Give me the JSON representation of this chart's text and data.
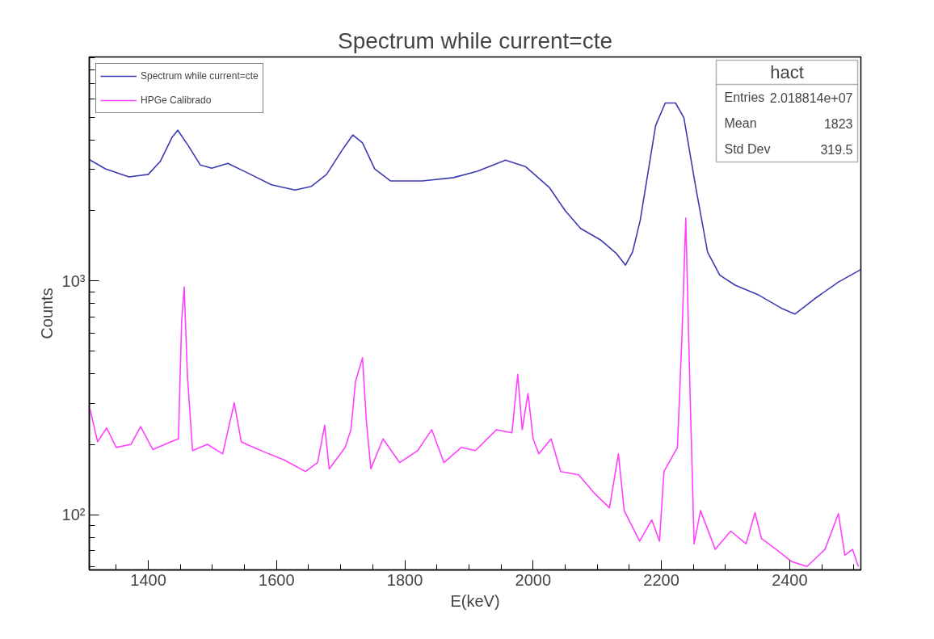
{
  "chart_data": {
    "type": "line",
    "title": "Spectrum while current=cte",
    "xlabel": "E(keV)",
    "ylabel": "Counts",
    "log": "y",
    "grid": false,
    "legend": "top left",
    "marker": "none",
    "line_style": "solid",
    "xlim": [
      1308,
      2511
    ],
    "ylim": [
      58,
      9100
    ],
    "xticks": [
      {
        "value": 1350,
        "label": null
      },
      1400,
      {
        "value": 1450,
        "label": null
      },
      {
        "value": 1500,
        "label": null
      },
      {
        "value": 1550,
        "label": null
      },
      1600,
      {
        "value": 1650,
        "label": null
      },
      {
        "value": 1700,
        "label": null
      },
      {
        "value": 1750,
        "label": null
      },
      1800,
      {
        "value": 1850,
        "label": null
      },
      {
        "value": 1900,
        "label": null
      },
      {
        "value": 1950,
        "label": null
      },
      2000,
      {
        "value": 2050,
        "label": null
      },
      {
        "value": 2100,
        "label": null
      },
      {
        "value": 2150,
        "label": null
      },
      2200,
      {
        "value": 2250,
        "label": null
      },
      {
        "value": 2300,
        "label": null
      },
      {
        "value": 2350,
        "label": null
      },
      2400,
      {
        "value": 2450,
        "label": null
      },
      {
        "value": 2500,
        "label": null
      }
    ],
    "yticks": [
      {
        "value": 60,
        "label": null
      },
      {
        "value": 70,
        "label": null
      },
      {
        "value": 80,
        "label": null
      },
      {
        "value": 90,
        "label": null
      },
      {
        "value": 100,
        "label": "10²"
      },
      {
        "value": 200,
        "label": null
      },
      {
        "value": 300,
        "label": null
      },
      {
        "value": 400,
        "label": null
      },
      {
        "value": 500,
        "label": null
      },
      {
        "value": 600,
        "label": null
      },
      {
        "value": 700,
        "label": null
      },
      {
        "value": 800,
        "label": null
      },
      {
        "value": 900,
        "label": null
      },
      {
        "value": 1000,
        "label": "10³"
      },
      {
        "value": 2000,
        "label": null
      },
      {
        "value": 3000,
        "label": null
      },
      {
        "value": 4000,
        "label": null
      },
      {
        "value": 5000,
        "label": null
      },
      {
        "value": 6000,
        "label": null
      },
      {
        "value": 7000,
        "label": null
      },
      {
        "value": 8000,
        "label": null
      },
      {
        "value": 9000,
        "label": null
      }
    ],
    "annotations": [
      "hact",
      "Entries",
      "2.018814e+07",
      "Mean",
      "1823",
      "Std Dev",
      "319.5"
    ],
    "series": [
      {
        "name": "Spectrum while current=cte",
        "color": "#3b3bb0",
        "x": [
          1308,
          1333,
          1370,
          1400,
          1419,
          1437,
          1446,
          1462,
          1481,
          1499,
          1524,
          1555,
          1592,
          1629,
          1654,
          1678,
          1703,
          1719,
          1734,
          1753,
          1778,
          1827,
          1876,
          1913,
          1957,
          1988,
          2025,
          2050,
          2074,
          2105,
          2130,
          2144,
          2155,
          2167,
          2179,
          2191,
          2206,
          2222,
          2235,
          2254,
          2272,
          2291,
          2315,
          2352,
          2389,
          2408,
          2439,
          2476,
          2511
        ],
        "values": [
          3310,
          3020,
          2790,
          2860,
          3260,
          4120,
          4420,
          3810,
          3140,
          3040,
          3190,
          2900,
          2580,
          2450,
          2540,
          2860,
          3660,
          4220,
          3900,
          3020,
          2680,
          2680,
          2770,
          2950,
          3290,
          3090,
          2520,
          2000,
          1680,
          1500,
          1310,
          1170,
          1330,
          1820,
          2900,
          4630,
          5780,
          5780,
          5000,
          2480,
          1330,
          1060,
          960,
          870,
          760,
          722,
          840,
          990,
          1120
        ]
      },
      {
        "name": "HPGe Calibrado",
        "color": "#ff40ff",
        "x": [
          1309,
          1321,
          1335,
          1350,
          1373,
          1388,
          1407,
          1435,
          1447,
          1452,
          1456,
          1461,
          1469,
          1492,
          1516,
          1534,
          1545,
          1564,
          1588,
          1611,
          1645,
          1664,
          1675,
          1682,
          1707,
          1716,
          1723,
          1734,
          1740,
          1747,
          1766,
          1792,
          1820,
          1842,
          1861,
          1888,
          1910,
          1943,
          1967,
          1976,
          1983,
          1992,
          2000,
          2009,
          2028,
          2043,
          2071,
          2095,
          2119,
          2133,
          2142,
          2166,
          2185,
          2197,
          2204,
          2225,
          2232,
          2238,
          2244,
          2251,
          2261,
          2284,
          2308,
          2332,
          2346,
          2356,
          2379,
          2403,
          2427,
          2455,
          2476,
          2486,
          2498,
          2507
        ],
        "values": [
          284,
          205,
          235,
          194,
          200,
          238,
          190,
          205,
          211,
          670,
          943,
          393,
          188,
          200,
          182,
          301,
          205,
          194,
          182,
          172,
          153,
          167,
          241,
          157,
          194,
          231,
          371,
          470,
          252,
          157,
          211,
          167,
          188,
          231,
          167,
          194,
          188,
          231,
          224,
          398,
          231,
          330,
          211,
          182,
          211,
          153,
          148,
          124,
          107,
          182,
          104,
          77,
          95,
          77,
          153,
          194,
          578,
          1860,
          393,
          75,
          104,
          71,
          85,
          75,
          102,
          79,
          71,
          63,
          60,
          71,
          101,
          67,
          71,
          60
        ]
      }
    ]
  }
}
